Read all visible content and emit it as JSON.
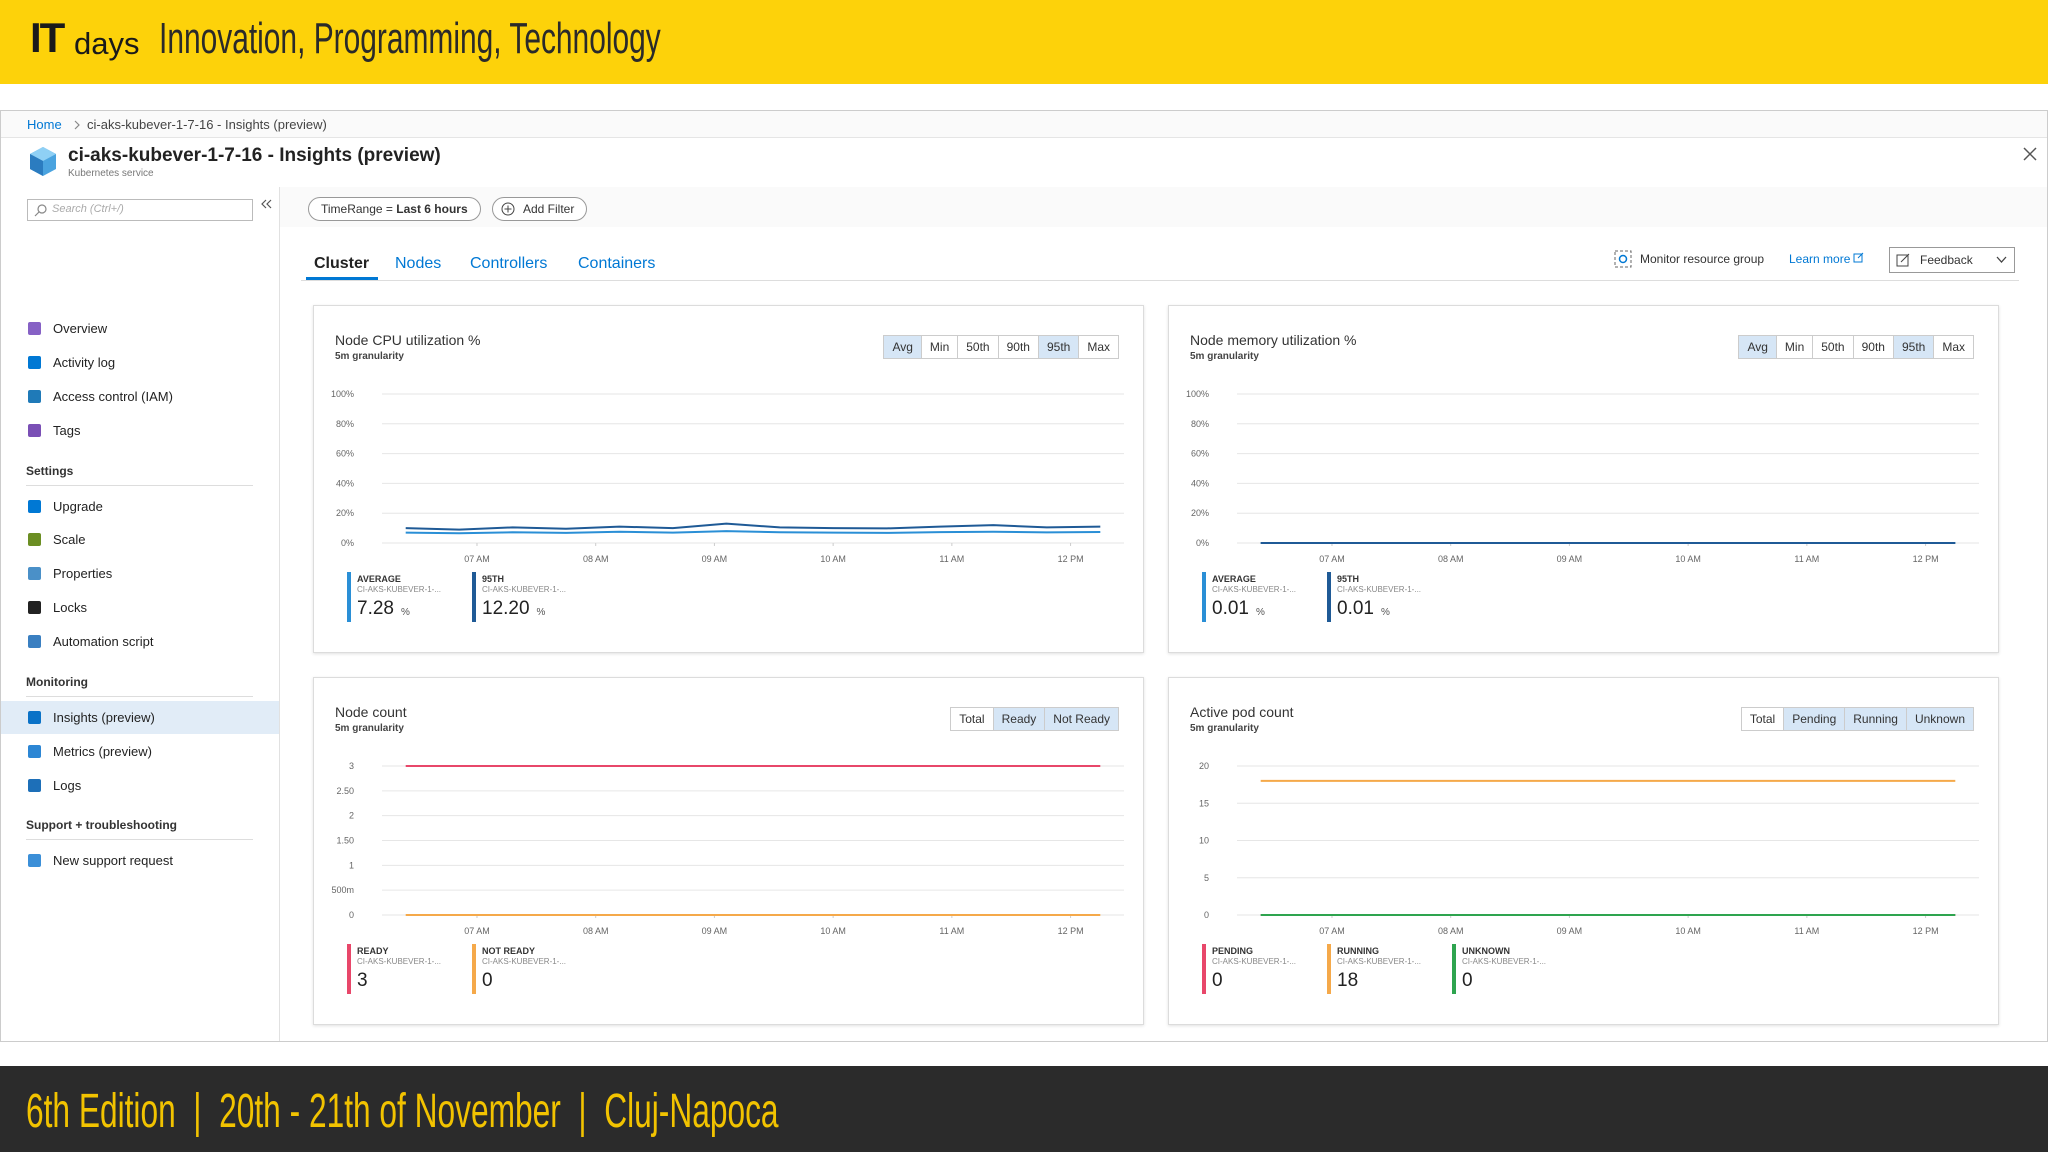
{
  "banner": {
    "logo": "IT",
    "logo_suffix": "days",
    "tagline": "Innovation, Programming, Technology"
  },
  "breadcrumb": [
    "Home",
    "ci-aks-kubever-1-7-16 - Insights (preview)"
  ],
  "resource": {
    "title": "ci-aks-kubever-1-7-16 - Insights (preview)",
    "subtitle": "Kubernetes service"
  },
  "search_placeholder": "Search (Ctrl+/)",
  "nav": [
    {
      "items": [
        "Overview",
        "Activity log",
        "Access control (IAM)",
        "Tags"
      ]
    },
    {
      "heading": "Settings",
      "items": [
        "Upgrade",
        "Scale",
        "Properties",
        "Locks",
        "Automation script"
      ]
    },
    {
      "heading": "Monitoring",
      "items": [
        "Insights (preview)",
        "Metrics (preview)",
        "Logs"
      ]
    },
    {
      "heading": "Support + troubleshooting",
      "items": [
        "New support request"
      ]
    }
  ],
  "nav_selected": [
    2,
    0
  ],
  "filters": {
    "time_label": "TimeRange = ",
    "time_value": "Last 6 hours",
    "add": "Add Filter"
  },
  "tabs": [
    "Cluster",
    "Nodes",
    "Controllers",
    "Containers"
  ],
  "active_tab": 0,
  "toolbar": {
    "monitor": "Monitor resource group",
    "learn": "Learn more",
    "feedback": "Feedback"
  },
  "charts": [
    {
      "title": "Node CPU utilization %",
      "subtitle": "5m granularity",
      "toggles": [
        "Avg",
        "Min",
        "50th",
        "90th",
        "95th",
        "Max"
      ],
      "selected": [
        0,
        4
      ],
      "ylim": [
        0,
        100
      ],
      "yticks": [
        {
          "value": 0,
          "label": "0%"
        },
        {
          "value": 20,
          "label": "20%"
        },
        {
          "value": 40,
          "label": "40%"
        },
        {
          "value": 60,
          "label": "60%"
        },
        {
          "value": 80,
          "label": "80%"
        },
        {
          "value": 100,
          "label": "100%"
        }
      ],
      "xlim": [
        6.2,
        12.45
      ],
      "xticks": [
        {
          "value": 7,
          "label": "07 AM"
        },
        {
          "value": 8,
          "label": "08 AM"
        },
        {
          "value": 9,
          "label": "09 AM"
        },
        {
          "value": 10,
          "label": "10 AM"
        },
        {
          "value": 11,
          "label": "11 AM"
        },
        {
          "value": 12,
          "label": "12 PM"
        }
      ],
      "x": [
        6.4,
        6.85,
        7.3,
        7.75,
        8.2,
        8.65,
        9.1,
        9.55,
        10,
        10.45,
        10.9,
        11.35,
        11.8,
        12.25
      ],
      "series": [
        {
          "name": "AVERAGE",
          "color": "#2a8fd6",
          "values": [
            7,
            6.5,
            7.2,
            6.8,
            7.5,
            7,
            8,
            7.2,
            7,
            6.8,
            7.3,
            7.6,
            7.1,
            7.4
          ]
        },
        {
          "name": "95TH",
          "color": "#1f5a96",
          "values": [
            10,
            9,
            10.5,
            9.5,
            11,
            10,
            13,
            10.5,
            10,
            9.8,
            11,
            12,
            10.5,
            11
          ]
        }
      ],
      "legend": [
        {
          "instance": "CI-AKS-KUBEVER-1-...",
          "value": "7.28",
          "unit": "%"
        },
        {
          "instance": "CI-AKS-KUBEVER-1-...",
          "value": "12.20",
          "unit": "%"
        }
      ]
    },
    {
      "title": "Node memory utilization %",
      "subtitle": "5m granularity",
      "toggles": [
        "Avg",
        "Min",
        "50th",
        "90th",
        "95th",
        "Max"
      ],
      "selected": [
        0,
        4
      ],
      "ylim": [
        0,
        100
      ],
      "yticks": [
        {
          "value": 0,
          "label": "0%"
        },
        {
          "value": 20,
          "label": "20%"
        },
        {
          "value": 40,
          "label": "40%"
        },
        {
          "value": 60,
          "label": "60%"
        },
        {
          "value": 80,
          "label": "80%"
        },
        {
          "value": 100,
          "label": "100%"
        }
      ],
      "xlim": [
        6.2,
        12.45
      ],
      "xticks": [
        {
          "value": 7,
          "label": "07 AM"
        },
        {
          "value": 8,
          "label": "08 AM"
        },
        {
          "value": 9,
          "label": "09 AM"
        },
        {
          "value": 10,
          "label": "10 AM"
        },
        {
          "value": 11,
          "label": "11 AM"
        },
        {
          "value": 12,
          "label": "12 PM"
        }
      ],
      "x": [
        6.4,
        6.85,
        7.3,
        7.75,
        8.2,
        8.65,
        9.1,
        9.55,
        10,
        10.45,
        10.9,
        11.35,
        11.8,
        12.25
      ],
      "series": [
        {
          "name": "AVERAGE",
          "color": "#2a8fd6",
          "values": [
            0.01,
            0.01,
            0.01,
            0.01,
            0.01,
            0.01,
            0.01,
            0.01,
            0.01,
            0.01,
            0.01,
            0.01,
            0.01,
            0.01
          ]
        },
        {
          "name": "95TH",
          "color": "#1f5a96",
          "values": [
            0.01,
            0.01,
            0.01,
            0.01,
            0.01,
            0.01,
            0.01,
            0.01,
            0.01,
            0.01,
            0.01,
            0.01,
            0.01,
            0.01
          ]
        }
      ],
      "legend": [
        {
          "instance": "CI-AKS-KUBEVER-1-...",
          "value": "0.01",
          "unit": "%"
        },
        {
          "instance": "CI-AKS-KUBEVER-1-...",
          "value": "0.01",
          "unit": "%"
        }
      ]
    },
    {
      "title": "Node count",
      "subtitle": "5m granularity",
      "toggles": [
        "Total",
        "Ready",
        "Not Ready"
      ],
      "selected": [
        1,
        2
      ],
      "ylim": [
        0,
        3
      ],
      "yticks": [
        0,
        {
          "value": 0.5,
          "label": "500m"
        },
        1,
        {
          "value": 1.5,
          "label": "1.50"
        },
        2,
        {
          "value": 2.5,
          "label": "2.50"
        },
        3
      ],
      "xlim": [
        6.2,
        12.45
      ],
      "xticks": [
        {
          "value": 7,
          "label": "07 AM"
        },
        {
          "value": 8,
          "label": "08 AM"
        },
        {
          "value": 9,
          "label": "09 AM"
        },
        {
          "value": 10,
          "label": "10 AM"
        },
        {
          "value": 11,
          "label": "11 AM"
        },
        {
          "value": 12,
          "label": "12 PM"
        }
      ],
      "x": [
        6.4,
        6.85,
        7.3,
        7.75,
        8.2,
        8.65,
        9.1,
        9.55,
        10,
        10.45,
        10.9,
        11.35,
        11.8,
        12.25
      ],
      "series": [
        {
          "name": "READY",
          "color": "#e8476a",
          "values": [
            3,
            3,
            3,
            3,
            3,
            3,
            3,
            3,
            3,
            3,
            3,
            3,
            3,
            3
          ]
        },
        {
          "name": "NOT READY",
          "color": "#f5a94a",
          "values": [
            0,
            0,
            0,
            0,
            0,
            0,
            0,
            0,
            0,
            0,
            0,
            0,
            0,
            0
          ]
        }
      ],
      "legend": [
        {
          "instance": "CI-AKS-KUBEVER-1-...",
          "value": "3"
        },
        {
          "instance": "CI-AKS-KUBEVER-1-...",
          "value": "0"
        }
      ]
    },
    {
      "title": "Active pod count",
      "subtitle": "5m granularity",
      "toggles": [
        "Total",
        "Pending",
        "Running",
        "Unknown"
      ],
      "selected": [
        1,
        2,
        3
      ],
      "ylim": [
        0,
        20
      ],
      "yticks": [
        0,
        5,
        10,
        15,
        20
      ],
      "xlim": [
        6.2,
        12.45
      ],
      "xticks": [
        {
          "value": 7,
          "label": "07 AM"
        },
        {
          "value": 8,
          "label": "08 AM"
        },
        {
          "value": 9,
          "label": "09 AM"
        },
        {
          "value": 10,
          "label": "10 AM"
        },
        {
          "value": 11,
          "label": "11 AM"
        },
        {
          "value": 12,
          "label": "12 PM"
        }
      ],
      "x": [
        6.4,
        6.85,
        7.3,
        7.75,
        8.2,
        8.65,
        9.1,
        9.55,
        10,
        10.45,
        10.9,
        11.35,
        11.8,
        12.25
      ],
      "series": [
        {
          "name": "PENDING",
          "color": "#e8476a",
          "values": [
            0,
            0,
            0,
            0,
            0,
            0,
            0,
            0,
            0,
            0,
            0,
            0,
            0,
            0
          ]
        },
        {
          "name": "RUNNING",
          "color": "#f5a94a",
          "values": [
            18,
            18,
            18,
            18,
            18,
            18,
            18,
            18,
            18,
            18,
            18,
            18,
            18,
            18
          ]
        },
        {
          "name": "UNKNOWN",
          "color": "#2ea44f",
          "values": [
            0,
            0,
            0,
            0,
            0,
            0,
            0,
            0,
            0,
            0,
            0,
            0,
            0,
            0
          ]
        }
      ],
      "legend": [
        {
          "instance": "CI-AKS-KUBEVER-1-...",
          "value": "0"
        },
        {
          "instance": "CI-AKS-KUBEVER-1-...",
          "value": "18"
        },
        {
          "instance": "CI-AKS-KUBEVER-1-...",
          "value": "0"
        }
      ]
    }
  ],
  "footer": "6th Edition  |  20th - 21th of November  |  Cluj-Napoca"
}
